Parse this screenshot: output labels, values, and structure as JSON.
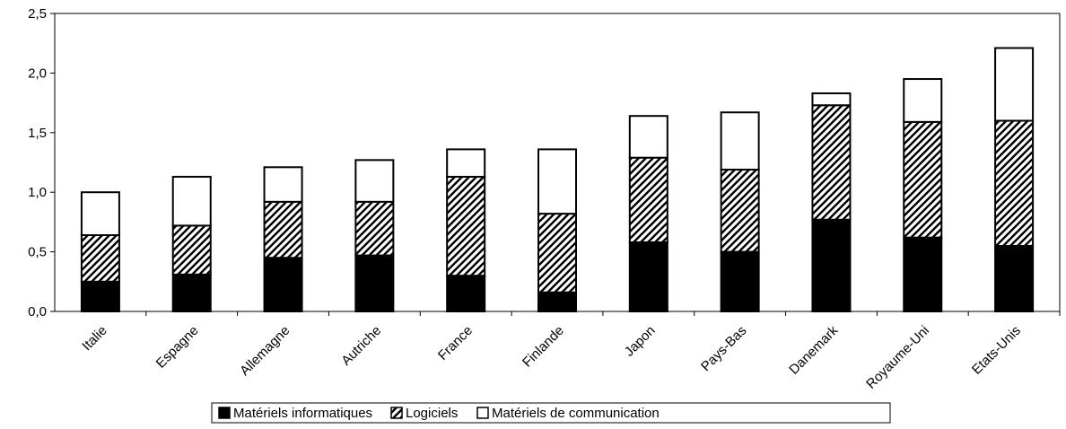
{
  "chart_data": {
    "type": "bar",
    "stacked": true,
    "categories": [
      "Italie",
      "Espagne",
      "Allemagne",
      "Autriche",
      "France",
      "Finlande",
      "Japon",
      "Pays-Bas",
      "Danemark",
      "Royaume-Uni",
      "Etats-Unis"
    ],
    "series": [
      {
        "name": "Matériels informatiques",
        "values": [
          0.25,
          0.31,
          0.45,
          0.47,
          0.3,
          0.16,
          0.58,
          0.5,
          0.77,
          0.62,
          0.55
        ],
        "fill": "solid",
        "color": "#000000"
      },
      {
        "name": "Logiciels",
        "values": [
          0.39,
          0.41,
          0.47,
          0.45,
          0.83,
          0.66,
          0.71,
          0.69,
          0.96,
          0.97,
          1.05
        ],
        "fill": "hatched",
        "color": "#000000"
      },
      {
        "name": "Matériels de communication",
        "values": [
          0.36,
          0.41,
          0.29,
          0.35,
          0.23,
          0.54,
          0.35,
          0.48,
          0.1,
          0.36,
          0.61
        ],
        "fill": "empty",
        "color": "#ffffff"
      }
    ],
    "yticks": [
      "0,0",
      "0,5",
      "1,0",
      "1,5",
      "2,0",
      "2,5"
    ],
    "ylim": [
      0,
      2.5
    ],
    "legend_position": "bottom",
    "grid": false
  }
}
